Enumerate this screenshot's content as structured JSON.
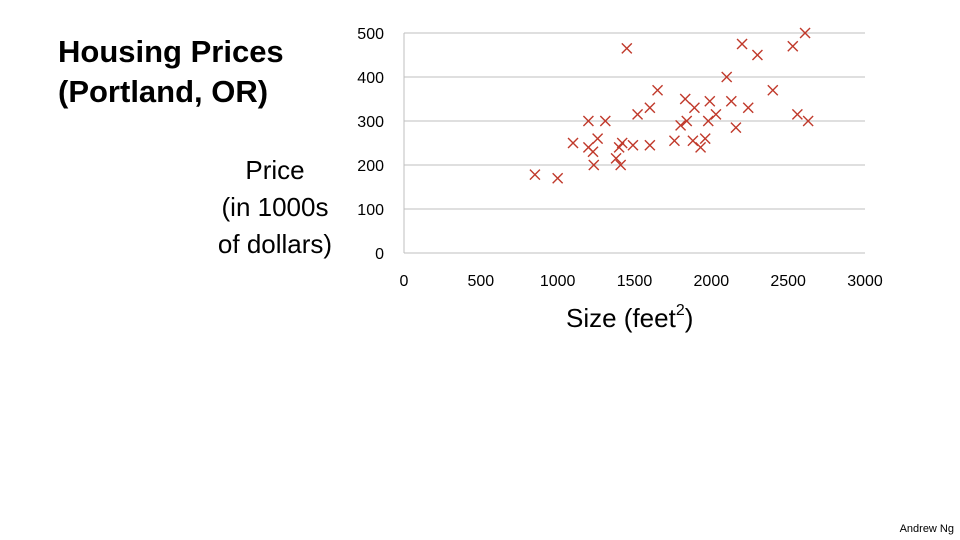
{
  "header": {
    "title_line1": "Housing Prices",
    "title_line2": "(Portland, OR)"
  },
  "footer": {
    "credit": "Andrew Ng"
  },
  "chart_data": {
    "type": "scatter",
    "title": "Housing Prices (Portland, OR)",
    "ylabel_lines": [
      "Price",
      "(in 1000s",
      "of dollars)"
    ],
    "xlabel_text": "Size (feet",
    "xlabel_sup": "2",
    "xlabel_close": ")",
    "xlim": [
      0,
      3000
    ],
    "ylim": [
      0,
      500
    ],
    "xticks": [
      0,
      500,
      1000,
      1500,
      2000,
      2500,
      3000
    ],
    "yticks": [
      0,
      100,
      200,
      300,
      400,
      500
    ],
    "grid": "horizontal",
    "marker": "x",
    "marker_color": "#c0392b",
    "grid_color": "#bfbfbf",
    "points": [
      [
        852,
        178
      ],
      [
        1000,
        170
      ],
      [
        1100,
        250
      ],
      [
        1200,
        300
      ],
      [
        1200,
        240
      ],
      [
        1230,
        230
      ],
      [
        1235,
        200
      ],
      [
        1260,
        260
      ],
      [
        1310,
        300
      ],
      [
        1380,
        215
      ],
      [
        1400,
        240
      ],
      [
        1410,
        200
      ],
      [
        1420,
        250
      ],
      [
        1450,
        465
      ],
      [
        1490,
        245
      ],
      [
        1520,
        315
      ],
      [
        1600,
        330
      ],
      [
        1600,
        245
      ],
      [
        1650,
        370
      ],
      [
        1760,
        255
      ],
      [
        1800,
        290
      ],
      [
        1830,
        350
      ],
      [
        1840,
        300
      ],
      [
        1880,
        255
      ],
      [
        1890,
        330
      ],
      [
        1930,
        240
      ],
      [
        1960,
        260
      ],
      [
        1980,
        300
      ],
      [
        1990,
        345
      ],
      [
        2030,
        315
      ],
      [
        2100,
        400
      ],
      [
        2130,
        345
      ],
      [
        2160,
        285
      ],
      [
        2200,
        475
      ],
      [
        2240,
        330
      ],
      [
        2300,
        450
      ],
      [
        2400,
        370
      ],
      [
        2530,
        470
      ],
      [
        2560,
        315
      ],
      [
        2610,
        500
      ],
      [
        2630,
        300
      ]
    ]
  }
}
